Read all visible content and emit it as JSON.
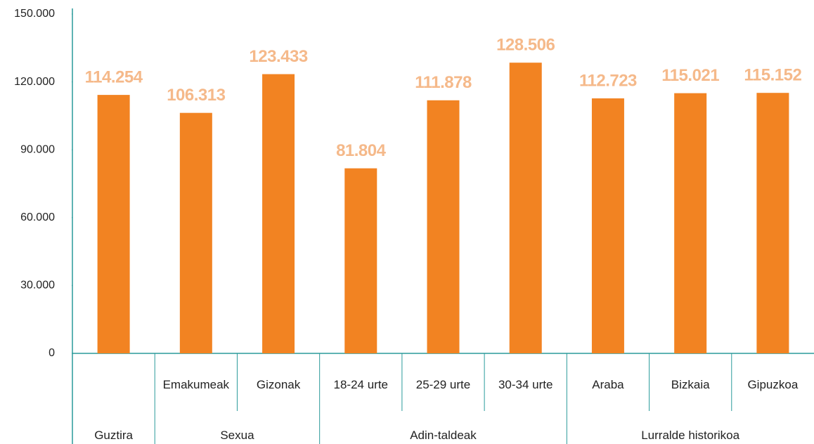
{
  "chart_data": {
    "type": "bar",
    "groups": [
      {
        "label": "Guztira",
        "categories": [
          null
        ]
      },
      {
        "label": "Sexua",
        "categories": [
          "Emakumeak",
          "Gizonak"
        ]
      },
      {
        "label": "Adin-taldeak",
        "categories": [
          "18-24 urte",
          "25-29 urte",
          "30-34 urte"
        ]
      },
      {
        "label": "Lurralde historikoa",
        "categories": [
          "Araba",
          "Bizkaia",
          "Gipuzkoa"
        ]
      }
    ],
    "values": [
      114254,
      106313,
      123433,
      81804,
      111878,
      128506,
      112723,
      115021,
      115152
    ],
    "value_labels": [
      "114.254",
      "106.313",
      "123.433",
      "81.804",
      "111.878",
      "128.506",
      "112.723",
      "115.021",
      "115.152"
    ],
    "color": "#f28322",
    "ylim": [
      0,
      150000
    ],
    "yticks": [
      0,
      {
        "value": 30000,
        "label": "30.000"
      },
      {
        "value": 60000,
        "label": "60.000"
      },
      {
        "value": 90000,
        "label": "90.000"
      },
      {
        "value": 120000,
        "label": "120.000"
      },
      {
        "value": 150000,
        "label": "150.000"
      }
    ]
  }
}
